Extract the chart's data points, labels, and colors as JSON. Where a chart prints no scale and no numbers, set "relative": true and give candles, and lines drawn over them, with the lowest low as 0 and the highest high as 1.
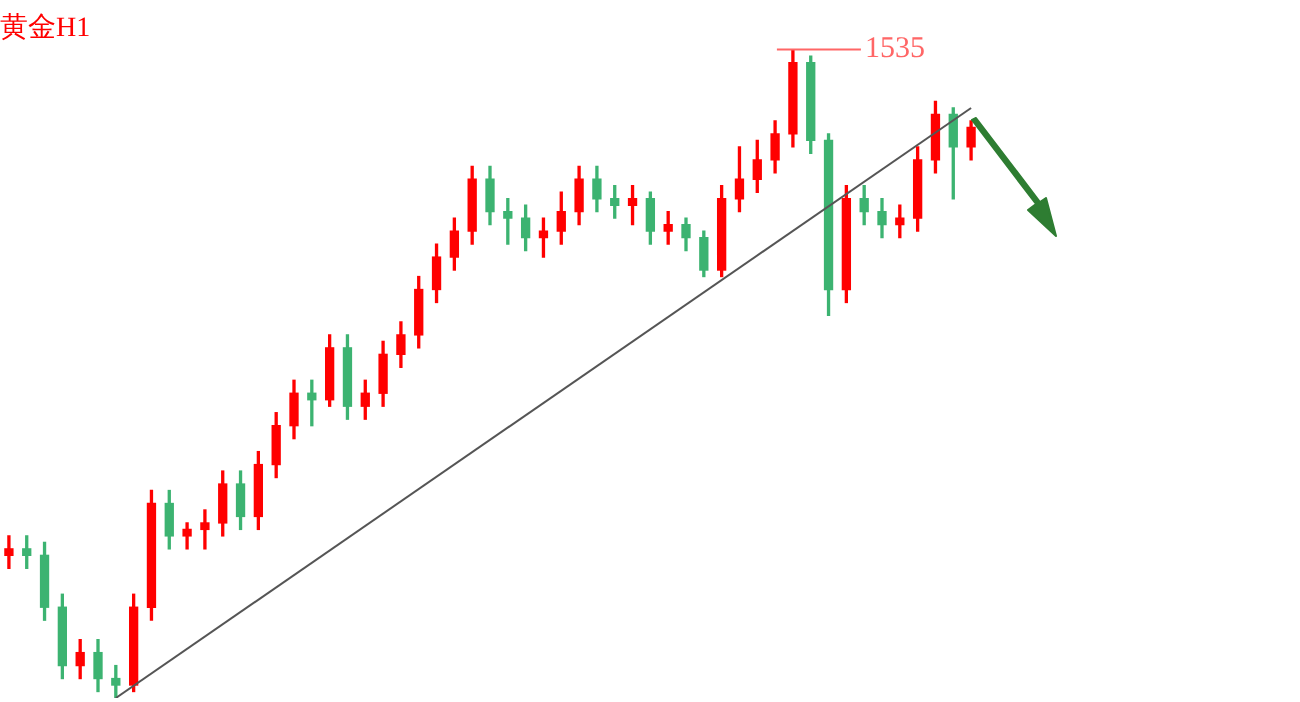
{
  "chart_data": {
    "type": "candlestick",
    "title": "黄金H1",
    "relative": true,
    "legend": false,
    "categories": [
      null,
      null,
      null,
      null,
      null,
      null,
      null,
      null,
      null,
      null,
      null,
      null,
      null,
      null,
      null,
      null,
      null,
      null,
      null,
      null,
      null,
      null,
      null,
      null,
      null,
      null,
      null,
      null,
      null,
      null,
      null,
      null,
      null,
      null,
      null,
      null,
      null,
      null,
      null,
      null,
      null,
      null,
      null,
      null,
      null,
      null,
      null,
      null,
      null,
      null,
      null,
      null,
      null,
      null,
      null
    ],
    "ohlc": [
      [
        0.22,
        0.25,
        0.2,
        0.23
      ],
      [
        0.23,
        0.25,
        0.2,
        0.22
      ],
      [
        0.22,
        0.24,
        0.12,
        0.14
      ],
      [
        0.14,
        0.16,
        0.03,
        0.05
      ],
      [
        0.05,
        0.09,
        0.03,
        0.07
      ],
      [
        0.07,
        0.09,
        0.01,
        0.03
      ],
      [
        0.03,
        0.05,
        0.0,
        0.02
      ],
      [
        0.02,
        0.16,
        0.01,
        0.14
      ],
      [
        0.14,
        0.32,
        0.12,
        0.3
      ],
      [
        0.3,
        0.32,
        0.23,
        0.25
      ],
      [
        0.25,
        0.27,
        0.23,
        0.26
      ],
      [
        0.26,
        0.29,
        0.23,
        0.27
      ],
      [
        0.27,
        0.35,
        0.25,
        0.33
      ],
      [
        0.33,
        0.35,
        0.26,
        0.28
      ],
      [
        0.28,
        0.38,
        0.26,
        0.36
      ],
      [
        0.36,
        0.44,
        0.34,
        0.42
      ],
      [
        0.42,
        0.49,
        0.4,
        0.47
      ],
      [
        0.47,
        0.49,
        0.42,
        0.46
      ],
      [
        0.46,
        0.56,
        0.45,
        0.54
      ],
      [
        0.54,
        0.56,
        0.43,
        0.45
      ],
      [
        0.45,
        0.49,
        0.43,
        0.47
      ],
      [
        0.47,
        0.55,
        0.45,
        0.53
      ],
      [
        0.53,
        0.58,
        0.51,
        0.56
      ],
      [
        0.56,
        0.65,
        0.54,
        0.63
      ],
      [
        0.63,
        0.7,
        0.61,
        0.68
      ],
      [
        0.68,
        0.74,
        0.66,
        0.72
      ],
      [
        0.72,
        0.82,
        0.7,
        0.8
      ],
      [
        0.8,
        0.82,
        0.73,
        0.75
      ],
      [
        0.75,
        0.77,
        0.7,
        0.74
      ],
      [
        0.74,
        0.76,
        0.69,
        0.71
      ],
      [
        0.71,
        0.74,
        0.68,
        0.72
      ],
      [
        0.72,
        0.78,
        0.7,
        0.75
      ],
      [
        0.75,
        0.82,
        0.73,
        0.8
      ],
      [
        0.8,
        0.82,
        0.75,
        0.77
      ],
      [
        0.77,
        0.79,
        0.74,
        0.76
      ],
      [
        0.76,
        0.79,
        0.73,
        0.77
      ],
      [
        0.77,
        0.78,
        0.7,
        0.72
      ],
      [
        0.72,
        0.75,
        0.7,
        0.73
      ],
      [
        0.73,
        0.74,
        0.69,
        0.71
      ],
      [
        0.71,
        0.72,
        0.65,
        0.66
      ],
      [
        0.66,
        0.79,
        0.65,
        0.77
      ],
      [
        0.77,
        0.85,
        0.75,
        0.8
      ],
      [
        0.8,
        0.86,
        0.78,
        0.83
      ],
      [
        0.83,
        0.89,
        0.81,
        0.87
      ],
      [
        0.87,
        1.0,
        0.85,
        0.98
      ],
      [
        0.98,
        0.99,
        0.84,
        0.86
      ],
      [
        0.86,
        0.87,
        0.59,
        0.63
      ],
      [
        0.63,
        0.79,
        0.61,
        0.77
      ],
      [
        0.77,
        0.79,
        0.73,
        0.75
      ],
      [
        0.75,
        0.77,
        0.71,
        0.73
      ],
      [
        0.73,
        0.76,
        0.71,
        0.74
      ],
      [
        0.74,
        0.85,
        0.72,
        0.83
      ],
      [
        0.83,
        0.92,
        0.81,
        0.9
      ],
      [
        0.9,
        0.91,
        0.77,
        0.85
      ],
      [
        0.85,
        0.89,
        0.83,
        0.88
      ]
    ],
    "colors": [
      "#ff0000",
      "#3cb371",
      "#3cb371",
      "#3cb371",
      "#ff0000",
      "#3cb371",
      "#3cb371",
      "#ff0000",
      "#ff0000",
      "#3cb371",
      "#ff0000",
      "#ff0000",
      "#ff0000",
      "#3cb371",
      "#ff0000",
      "#ff0000",
      "#ff0000",
      "#3cb371",
      "#ff0000",
      "#3cb371",
      "#ff0000",
      "#ff0000",
      "#ff0000",
      "#ff0000",
      "#ff0000",
      "#ff0000",
      "#ff0000",
      "#3cb371",
      "#3cb371",
      "#3cb371",
      "#ff0000",
      "#ff0000",
      "#ff0000",
      "#3cb371",
      "#3cb371",
      "#ff0000",
      "#3cb371",
      "#ff0000",
      "#3cb371",
      "#3cb371",
      "#ff0000",
      "#ff0000",
      "#ff0000",
      "#ff0000",
      "#ff0000",
      "#3cb371",
      "#3cb371",
      "#ff0000",
      "#3cb371",
      "#3cb371",
      "#ff0000",
      "#ff0000",
      "#ff0000",
      "#3cb371",
      "#ff0000"
    ],
    "series": [
      {
        "type": "line",
        "color": "#555555",
        "values": [
          null,
          null,
          null,
          null,
          null,
          null,
          0.0,
          null,
          null,
          null,
          null,
          null,
          null,
          null,
          null,
          null,
          null,
          null,
          null,
          null,
          null,
          null,
          null,
          null,
          null,
          null,
          null,
          null,
          null,
          null,
          null,
          null,
          null,
          null,
          null,
          null,
          null,
          null,
          null,
          null,
          null,
          null,
          null,
          null,
          null,
          null,
          null,
          null,
          null,
          null,
          null,
          null,
          null,
          null,
          0.91
        ]
      }
    ],
    "annotations": [
      "1535"
    ]
  }
}
